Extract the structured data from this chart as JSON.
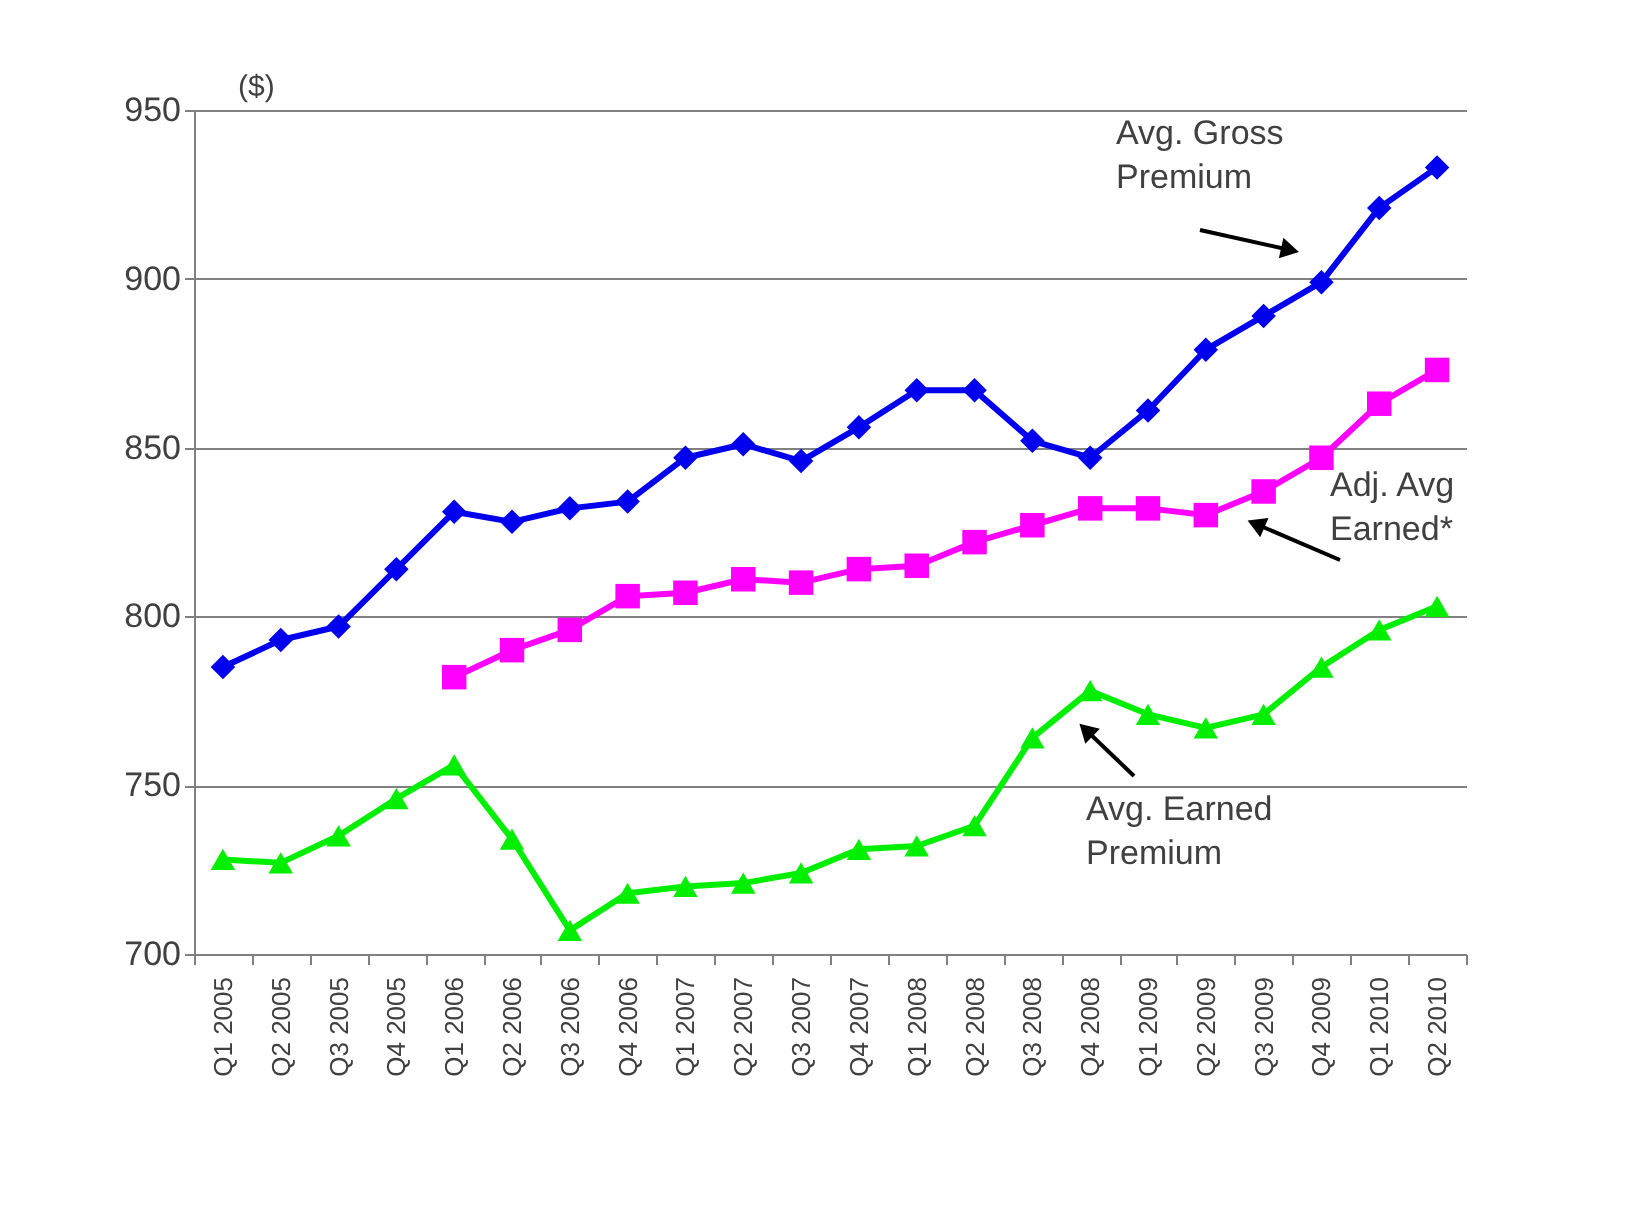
{
  "chart_data": {
    "type": "line",
    "ylabel": "($)",
    "categories": [
      "Q1 2005",
      "Q2 2005",
      "Q3 2005",
      "Q4 2005",
      "Q1 2006",
      "Q2 2006",
      "Q3 2006",
      "Q4 2006",
      "Q1 2007",
      "Q2 2007",
      "Q3 2007",
      "Q4 2007",
      "Q1 2008",
      "Q2 2008",
      "Q3 2008",
      "Q4 2008",
      "Q1 2009",
      "Q2 2009",
      "Q3 2009",
      "Q4 2009",
      "Q1 2010",
      "Q2 2010"
    ],
    "series": [
      {
        "name": "Avg. Gross\nPremium",
        "color": "#0000ee",
        "marker": "diamond",
        "values": [
          785,
          793,
          797,
          814,
          831,
          828,
          832,
          834,
          847,
          851,
          846,
          856,
          867,
          867,
          852,
          847,
          861,
          879,
          889,
          899,
          921,
          933
        ]
      },
      {
        "name": "Adj. Avg\nEarned*",
        "color": "#ff00ff",
        "marker": "square",
        "values": [
          null,
          null,
          null,
          null,
          782,
          790,
          796,
          806,
          807,
          811,
          810,
          814,
          815,
          822,
          827,
          832,
          832,
          830,
          837,
          847,
          863,
          873
        ]
      },
      {
        "name": "Avg. Earned\nPremium",
        "color": "#00ee00",
        "marker": "triangle",
        "values": [
          728,
          727,
          735,
          746,
          756,
          734,
          707,
          718,
          720,
          721,
          724,
          731,
          732,
          738,
          764,
          778,
          771,
          767,
          771,
          785,
          796,
          803
        ]
      }
    ],
    "ylim": [
      700,
      950
    ],
    "yticks": [
      700,
      750,
      800,
      850,
      900,
      950
    ],
    "grid": "y",
    "line_style": "solid"
  }
}
